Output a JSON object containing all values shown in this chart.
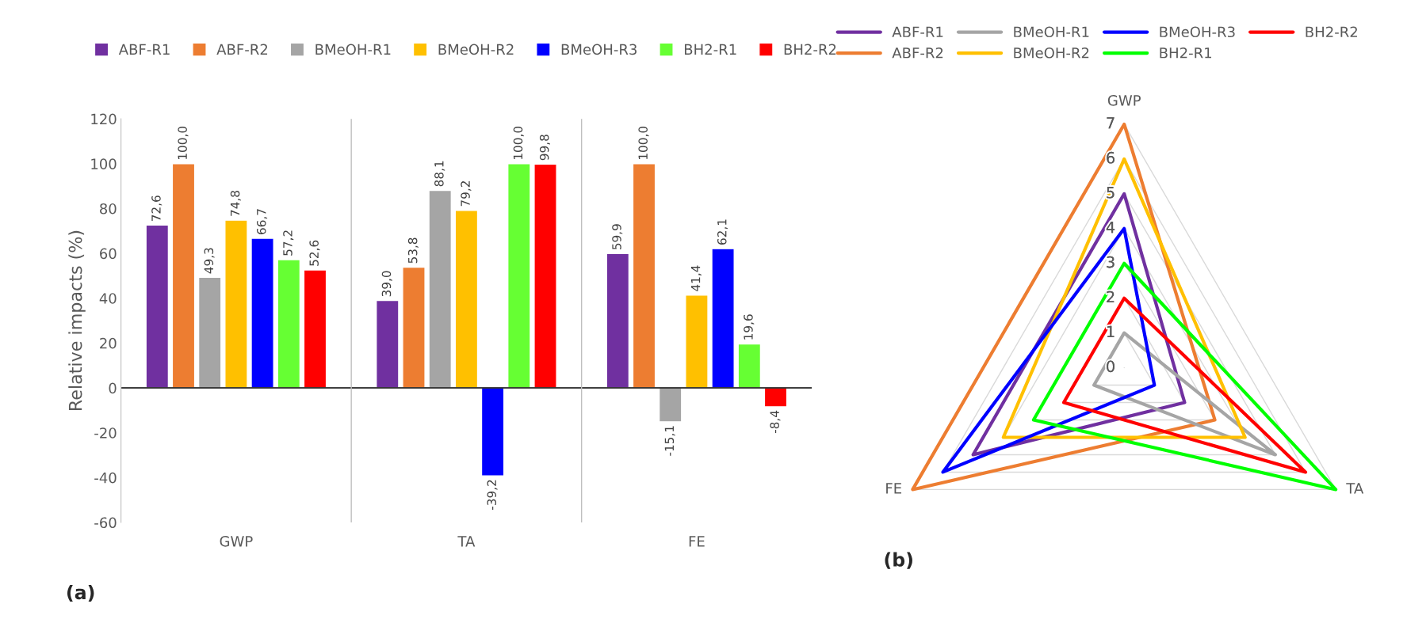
{
  "chart_data": [
    {
      "type": "bar",
      "categories": [
        "GWP",
        "TA",
        "FE"
      ],
      "ylabel": "Relative impacts (%)",
      "ylim": [
        -60,
        120
      ],
      "yticks": [
        -60,
        -40,
        -20,
        0,
        20,
        40,
        60,
        80,
        100,
        120
      ],
      "grid": false,
      "legend": "top",
      "annotations": [
        "(a)"
      ],
      "series": [
        {
          "name": "ABF-R1",
          "color": "#7030a0",
          "values": [
            72.6,
            39.0,
            59.9
          ],
          "value_labels": [
            "72,6",
            "39,0",
            "59,9"
          ]
        },
        {
          "name": "ABF-R2",
          "color": "#ed7d31",
          "values": [
            100.0,
            53.8,
            100.0
          ],
          "value_labels": [
            "100,0",
            "53,8",
            "100,0"
          ]
        },
        {
          "name": "BMeOH-R1",
          "color": "#a5a5a5",
          "values": [
            49.3,
            88.1,
            -15.1
          ],
          "value_labels": [
            "49,3",
            "88,1",
            "-15,1"
          ]
        },
        {
          "name": "BMeOH-R2",
          "color": "#ffc000",
          "values": [
            74.8,
            79.2,
            41.4
          ],
          "value_labels": [
            "74,8",
            "79,2",
            "41,4"
          ]
        },
        {
          "name": "BMeOH-R3",
          "color": "#0000ff",
          "values": [
            66.7,
            -39.2,
            62.1
          ],
          "value_labels": [
            "66,7",
            "-39,2",
            "62,1"
          ]
        },
        {
          "name": "BH2-R1",
          "color": "#66ff33",
          "values": [
            57.2,
            100.0,
            19.6
          ],
          "value_labels": [
            "57,2",
            "100,0",
            "19,6"
          ]
        },
        {
          "name": "BH2-R2",
          "color": "#ff0000",
          "values": [
            52.6,
            99.8,
            -8.4
          ],
          "value_labels": [
            "52,6",
            "99,8",
            "-8,4"
          ]
        }
      ]
    },
    {
      "type": "radar",
      "categories": [
        "GWP",
        "TA",
        "FE"
      ],
      "ylim": [
        0,
        7
      ],
      "yticks": [
        0,
        1,
        2,
        3,
        4,
        5,
        6,
        7
      ],
      "grid": true,
      "legend": "top",
      "annotations": [
        "(b)"
      ],
      "series": [
        {
          "name": "ABF-R1",
          "color": "#7030a0",
          "values": [
            5,
            2,
            5
          ]
        },
        {
          "name": "ABF-R2",
          "color": "#ed7d31",
          "values": [
            7,
            3,
            7
          ]
        },
        {
          "name": "BMeOH-R1",
          "color": "#a5a5a5",
          "values": [
            1,
            5,
            1
          ]
        },
        {
          "name": "BMeOH-R2",
          "color": "#ffc000",
          "values": [
            6,
            4,
            4
          ]
        },
        {
          "name": "BMeOH-R3",
          "color": "#0000ff",
          "values": [
            4,
            1,
            6
          ]
        },
        {
          "name": "BH2-R1",
          "color": "#00ff00",
          "values": [
            3,
            7,
            3
          ]
        },
        {
          "name": "BH2-R2",
          "color": "#ff0000",
          "values": [
            2,
            6,
            2
          ]
        }
      ]
    }
  ]
}
